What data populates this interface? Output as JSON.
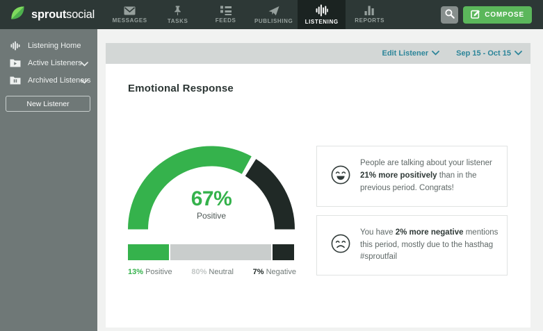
{
  "topnav": {
    "brand_bold": "sprout",
    "brand_regular": "social",
    "items": [
      {
        "label": "MESSAGES",
        "icon": "envelope-icon"
      },
      {
        "label": "TASKS",
        "icon": "pushpin-icon"
      },
      {
        "label": "FEEDS",
        "icon": "feed-list-icon"
      },
      {
        "label": "PUBLISHING",
        "icon": "paper-plane-icon"
      },
      {
        "label": "LISTENING",
        "icon": "waveform-icon",
        "active": true
      },
      {
        "label": "REPORTS",
        "icon": "bar-chart-icon"
      }
    ],
    "compose_label": "COMPOSE"
  },
  "sidebar": {
    "items": [
      {
        "label": "Listening Home",
        "icon": "waveform-icon",
        "expandable": false
      },
      {
        "label": "Active Listeners",
        "icon": "folder-play-icon",
        "expandable": true
      },
      {
        "label": "Archived Listeners",
        "icon": "folder-pause-icon",
        "expandable": true
      }
    ],
    "new_listener_label": "New Listener"
  },
  "toolbar": {
    "edit_listener_label": "Edit Listener",
    "date_range_label": "Sep 15 - Oct 15"
  },
  "main": {
    "section_title": "Emotional Response",
    "cards": [
      {
        "icon": "happy-face-icon",
        "text_pre": "People are talking about your listener ",
        "text_bold": "21% more positively",
        "text_post": " than in the previous period. Congrats!"
      },
      {
        "icon": "sad-face-icon",
        "text_pre": "You have ",
        "text_bold": "2% more negative",
        "text_post": " mentions this period, mostly due to the hasthag #sproutfail"
      }
    ]
  },
  "chart_data": {
    "type": "gauge",
    "title": "Emotional Response",
    "gauge": {
      "value_pct": 67,
      "center_text": "67%",
      "label": "Positive",
      "positive_color": "#35b24c",
      "negative_color": "#202926"
    },
    "bar": {
      "type": "stacked-bar",
      "segments": [
        {
          "name": "Positive",
          "pct": 13,
          "pct_label": "13%",
          "color": "#35b24c",
          "pct_color": "#35b24c",
          "visual_width_pct": 25
        },
        {
          "name": "Neutral",
          "pct": 80,
          "pct_label": "80%",
          "color": "#c9cdcc",
          "pct_color": "#c2c7c6",
          "visual_width_pct": 62
        },
        {
          "name": "Negative",
          "pct": 7,
          "pct_label": "7%",
          "color": "#202926",
          "pct_color": "#222b29",
          "visual_width_pct": 13
        }
      ]
    }
  },
  "colors": {
    "brand_green": "#5bb75b",
    "chart_green": "#35b24c",
    "chart_dark": "#202926",
    "teal_link": "#2c8599",
    "topnav_bg": "#2d3836",
    "sidebar_bg": "#6f7877"
  }
}
